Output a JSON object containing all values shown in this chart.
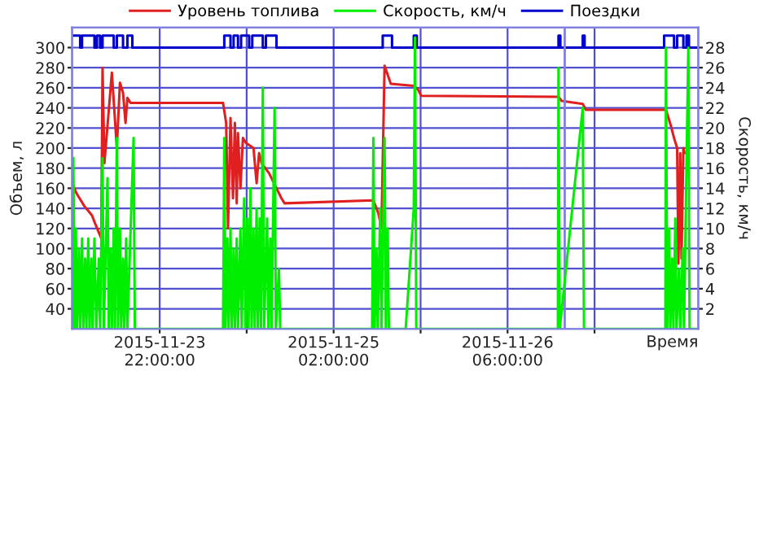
{
  "chart_data": {
    "type": "line",
    "xlabel": "Время",
    "ylabel": "Объем, л",
    "y2label": "Скорость, км/ч",
    "xlim": [
      "2015-11-23T07:54",
      "2015-11-27T12:42"
    ],
    "xticks": [
      {
        "value": "2015-11-23T22:00",
        "label": "2015-11-23\n22:00:00"
      },
      {
        "value": "2015-11-24T12:00",
        "label": null
      },
      {
        "value": "2015-11-25T02:00",
        "label": "2015-11-25\n02:00:00"
      },
      {
        "value": "2015-11-25T16:00",
        "label": null
      },
      {
        "value": "2015-11-26T06:00",
        "label": "2015-11-26\n06:00:00"
      },
      {
        "value": "2015-11-26T20:00",
        "label": null
      }
    ],
    "ylim": [
      20,
      320
    ],
    "yticks": [
      40,
      60,
      80,
      100,
      120,
      140,
      160,
      180,
      200,
      220,
      240,
      260,
      280,
      300
    ],
    "y2lim": [
      0,
      30
    ],
    "y2ticks": [
      2,
      4,
      6,
      8,
      10,
      12,
      14,
      16,
      18,
      20,
      22,
      24,
      26,
      28
    ],
    "grid": true,
    "legend": "top",
    "line_style": "solid",
    "marker": "none",
    "ref_lines": [
      {
        "axis": "x",
        "value": "2015-11-26T15:12",
        "color": "#8080e0"
      }
    ],
    "series": [
      {
        "name": "Уровень топлива",
        "color": "#e02020",
        "x": [
          "2015-11-23T07:54",
          "2015-11-23T08:36",
          "2015-11-23T09:54",
          "2015-11-23T11:06",
          "2015-11-23T11:36",
          "2015-11-23T12:36",
          "2015-11-23T12:48",
          "2015-11-23T13:06",
          "2015-11-23T14:18",
          "2015-11-23T15:06",
          "2015-11-23T15:36",
          "2015-11-23T16:06",
          "2015-11-23T16:30",
          "2015-11-23T16:48",
          "2015-11-23T17:18",
          "2015-11-24T08:12",
          "2015-11-24T08:42",
          "2015-11-24T09:00",
          "2015-11-24T09:24",
          "2015-11-24T09:48",
          "2015-11-24T10:06",
          "2015-11-24T10:24",
          "2015-11-24T10:36",
          "2015-11-24T11:00",
          "2015-11-24T11:24",
          "2015-11-24T11:54",
          "2015-11-24T13:06",
          "2015-11-24T13:36",
          "2015-11-24T14:00",
          "2015-11-24T14:24",
          "2015-11-24T15:36",
          "2015-11-24T16:48",
          "2015-11-24T17:36",
          "2015-11-24T18:06",
          "2015-11-25T08:24",
          "2015-11-25T09:12",
          "2015-11-25T09:42",
          "2015-11-25T10:12",
          "2015-11-25T11:12",
          "2015-11-25T14:54",
          "2015-11-25T15:36",
          "2015-11-25T16:06",
          "2015-11-26T14:12",
          "2015-11-26T14:42",
          "2015-11-26T18:06",
          "2015-11-26T18:36",
          "2015-11-27T07:30",
          "2015-11-27T08:18",
          "2015-11-27T08:48",
          "2015-11-27T09:18",
          "2015-11-27T09:30",
          "2015-11-27T09:48",
          "2015-11-27T10:00",
          "2015-11-27T10:18",
          "2015-11-27T10:30"
        ],
        "values": [
          165,
          155,
          142,
          133,
          125,
          110,
          280,
          185,
          275,
          200,
          265,
          255,
          225,
          250,
          245,
          245,
          225,
          120,
          230,
          150,
          225,
          145,
          215,
          160,
          210,
          205,
          200,
          165,
          195,
          185,
          175,
          160,
          150,
          145,
          148,
          135,
          120,
          282,
          264,
          262,
          258,
          252,
          251,
          247,
          244,
          238,
          238,
          222,
          210,
          200,
          85,
          195,
          90,
          200,
          195
        ]
      },
      {
        "name": "Скорость, км/ч",
        "color": "#00ee00",
        "axis": "y2",
        "x": [
          "2015-11-23T07:54",
          "2015-11-23T08:06",
          "2015-11-23T08:18",
          "2015-11-23T08:30",
          "2015-11-23T08:42",
          "2015-11-23T09:00",
          "2015-11-23T09:12",
          "2015-11-23T09:30",
          "2015-11-23T09:42",
          "2015-11-23T10:00",
          "2015-11-23T10:12",
          "2015-11-23T10:30",
          "2015-11-23T10:42",
          "2015-11-23T11:00",
          "2015-11-23T11:12",
          "2015-11-23T11:30",
          "2015-11-23T11:48",
          "2015-11-23T12:12",
          "2015-11-23T12:24",
          "2015-11-23T12:48",
          "2015-11-23T13:00",
          "2015-11-23T13:36",
          "2015-11-23T13:48",
          "2015-11-23T14:06",
          "2015-11-23T14:18",
          "2015-11-23T14:36",
          "2015-11-23T14:48",
          "2015-11-23T15:06",
          "2015-11-23T15:18",
          "2015-11-23T15:36",
          "2015-11-23T15:48",
          "2015-11-23T16:06",
          "2015-11-23T16:18",
          "2015-11-23T16:36",
          "2015-11-23T16:48",
          "2015-11-23T17:48",
          "2015-11-23T18:00",
          "2015-11-24T08:12",
          "2015-11-24T08:24",
          "2015-11-24T08:36",
          "2015-11-24T08:54",
          "2015-11-24T09:06",
          "2015-11-24T09:24",
          "2015-11-24T09:36",
          "2015-11-24T09:54",
          "2015-11-24T10:06",
          "2015-11-24T10:24",
          "2015-11-24T10:36",
          "2015-11-24T11:00",
          "2015-11-24T11:12",
          "2015-11-24T11:36",
          "2015-11-24T11:48",
          "2015-11-24T12:06",
          "2015-11-24T12:18",
          "2015-11-24T12:36",
          "2015-11-24T12:48",
          "2015-11-24T13:06",
          "2015-11-24T13:18",
          "2015-11-24T13:36",
          "2015-11-24T13:48",
          "2015-11-24T14:06",
          "2015-11-24T14:18",
          "2015-11-24T14:36",
          "2015-11-24T14:48",
          "2015-11-24T15:18",
          "2015-11-24T15:30",
          "2015-11-24T15:48",
          "2015-11-24T16:00",
          "2015-11-24T16:30",
          "2015-11-24T16:42",
          "2015-11-24T17:12",
          "2015-11-24T17:24",
          "2015-11-25T08:12",
          "2015-11-25T08:24",
          "2015-11-25T08:36",
          "2015-11-25T08:54",
          "2015-11-25T09:06",
          "2015-11-25T09:30",
          "2015-11-25T09:42",
          "2015-11-25T10:12",
          "2015-11-25T10:24",
          "2015-11-25T10:42",
          "2015-11-25T10:54",
          "2015-11-25T13:36",
          "2015-11-25T14:54",
          "2015-11-25T15:06",
          "2015-11-25T15:18",
          "2015-11-26T14:06",
          "2015-11-26T14:12",
          "2015-11-26T14:24",
          "2015-11-26T18:06",
          "2015-11-26T18:18",
          "2015-11-27T07:24",
          "2015-11-27T07:30",
          "2015-11-27T07:42",
          "2015-11-27T08:00",
          "2015-11-27T08:12",
          "2015-11-27T08:30",
          "2015-11-27T08:42",
          "2015-11-27T09:00",
          "2015-11-27T09:12",
          "2015-11-27T09:36",
          "2015-11-27T09:48",
          "2015-11-27T10:12",
          "2015-11-27T10:24",
          "2015-11-27T11:06",
          "2015-11-27T11:18",
          "2015-11-27T12:42"
        ],
        "values": [
          0,
          17,
          0,
          10,
          0,
          8,
          0,
          9,
          0,
          7,
          0,
          9,
          0,
          7,
          0,
          9,
          0,
          7,
          0,
          17,
          0,
          15,
          0,
          8,
          0,
          10,
          0,
          19,
          0,
          10,
          0,
          7,
          0,
          9,
          0,
          19,
          0,
          0,
          19,
          0,
          9,
          0,
          10,
          0,
          8,
          0,
          9,
          0,
          10,
          0,
          13,
          0,
          11,
          0,
          14,
          0,
          10,
          0,
          12,
          0,
          11,
          0,
          24,
          0,
          11,
          0,
          9,
          0,
          22,
          0,
          6,
          0,
          0,
          19,
          0,
          8,
          0,
          12,
          0,
          19,
          0,
          10,
          0,
          0,
          12,
          29,
          0,
          0,
          26,
          0,
          22,
          0,
          0,
          28,
          0,
          10,
          0,
          7,
          0,
          11,
          0,
          6,
          0,
          8,
          0,
          28,
          0,
          0
        ]
      },
      {
        "name": "Поездки",
        "color": "#0000cc",
        "type": "step",
        "x": [
          "2015-11-23T07:54",
          "2015-11-23T09:12",
          "2015-11-23T09:30",
          "2015-11-23T11:30",
          "2015-11-23T11:54",
          "2015-11-23T12:24",
          "2015-11-23T12:48",
          "2015-11-23T14:36",
          "2015-11-23T15:06",
          "2015-11-23T16:06",
          "2015-11-23T16:48",
          "2015-11-23T17:36",
          "2015-11-24T08:24",
          "2015-11-24T09:24",
          "2015-11-24T09:54",
          "2015-11-24T10:36",
          "2015-11-24T11:06",
          "2015-11-24T12:24",
          "2015-11-24T12:54",
          "2015-11-24T14:36",
          "2015-11-24T15:06",
          "2015-11-24T16:48",
          "2015-11-25T09:54",
          "2015-11-25T11:24",
          "2015-11-25T14:54",
          "2015-11-25T15:24",
          "2015-11-26T14:12",
          "2015-11-26T14:30",
          "2015-11-26T18:06",
          "2015-11-26T18:24",
          "2015-11-27T07:12",
          "2015-11-27T08:48",
          "2015-11-27T09:18",
          "2015-11-27T10:18",
          "2015-11-27T10:48",
          "2015-11-27T11:12",
          "2015-11-27T12:42"
        ],
        "values": [
          312,
          300,
          312,
          300,
          312,
          300,
          312,
          300,
          312,
          300,
          312,
          300,
          312,
          300,
          312,
          300,
          312,
          300,
          312,
          300,
          312,
          300,
          312,
          300,
          312,
          300,
          312,
          300,
          312,
          300,
          312,
          300,
          312,
          300,
          312,
          300,
          300
        ]
      }
    ]
  }
}
